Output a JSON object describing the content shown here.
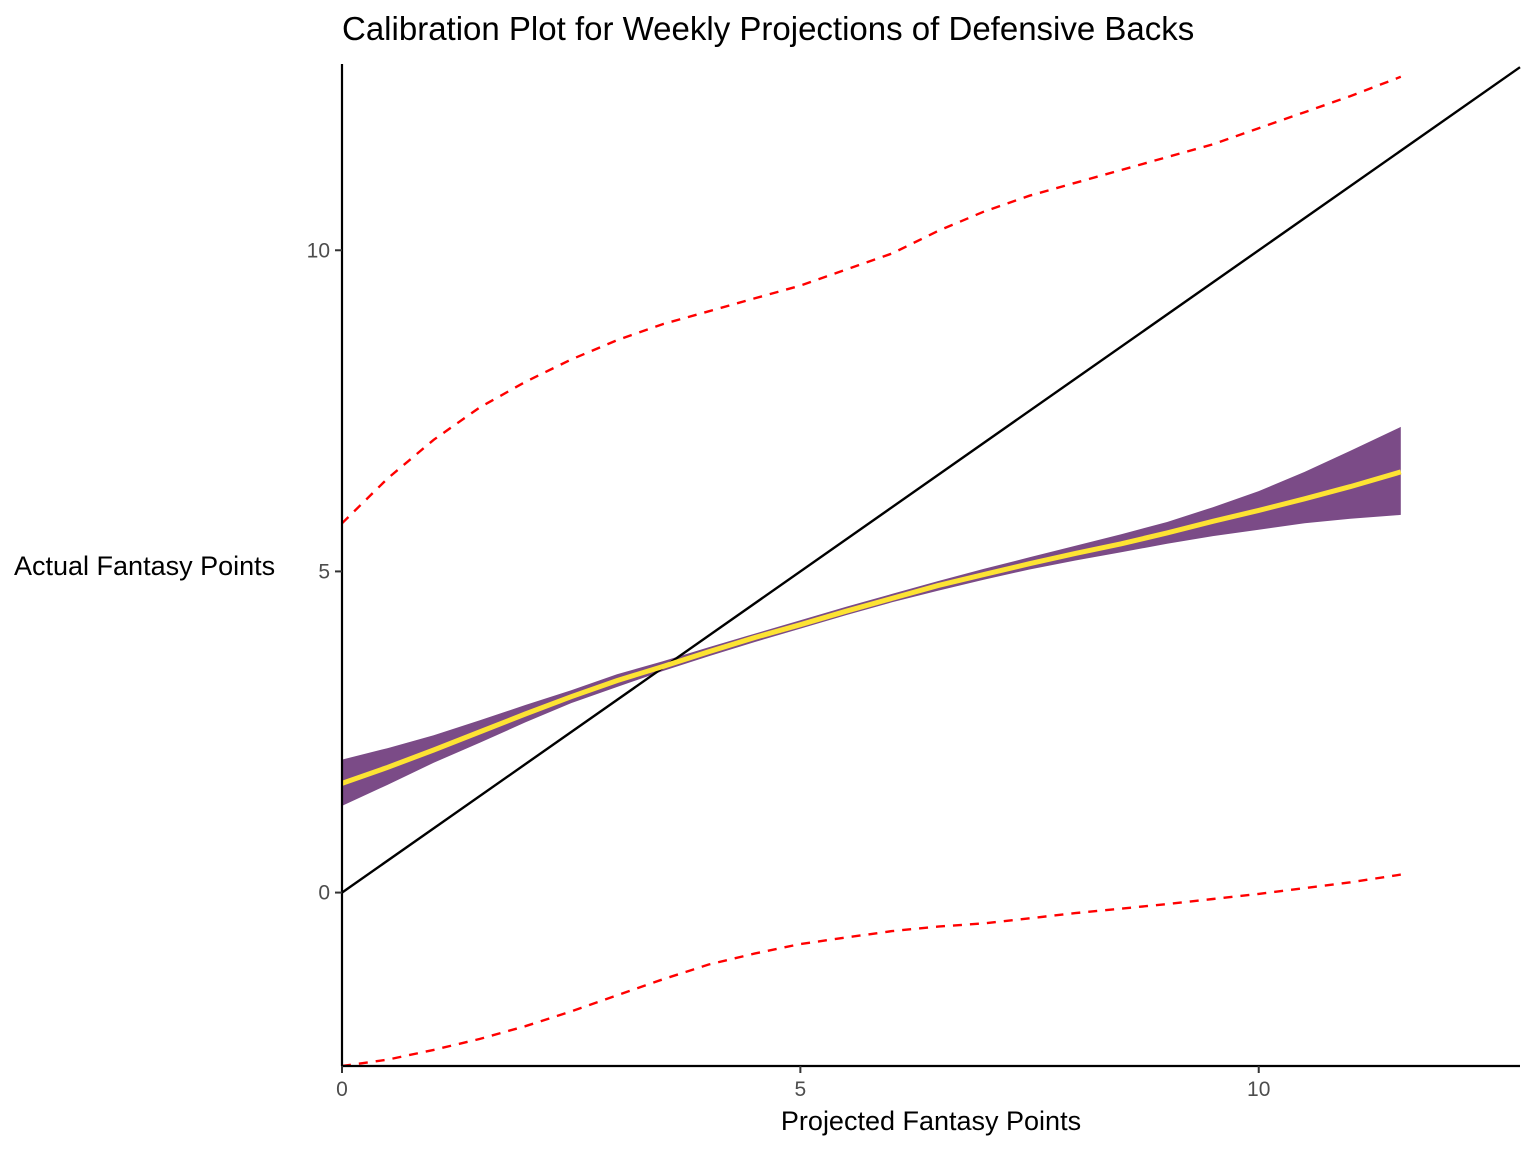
{
  "chart_data": {
    "type": "line",
    "title": "Calibration Plot for Weekly Projections of Defensive Backs",
    "xlabel": "Projected Fantasy Points",
    "ylabel": "Actual Fantasy Points",
    "xlim": [
      0,
      12.85
    ],
    "ylim": [
      -2.7,
      12.9
    ],
    "x_ticks": [
      0,
      5,
      10
    ],
    "y_ticks": [
      0,
      5,
      10
    ],
    "grid": false,
    "legend": "none",
    "colors": {
      "smooth_line": "#FDE333",
      "confidence_band": "#7B4B87",
      "prediction_interval": "#FF0000",
      "identity_line": "#000000",
      "axis": "#000000"
    },
    "series": [
      {
        "style": "identity",
        "x": [
          0,
          12.85
        ],
        "y": [
          0,
          12.85
        ]
      },
      {
        "style": "smooth",
        "x": [
          0,
          0.5,
          1,
          1.5,
          2,
          2.5,
          3,
          3.5,
          4,
          4.5,
          5,
          5.5,
          6,
          6.5,
          7,
          7.5,
          8,
          8.5,
          9,
          9.5,
          10,
          10.5,
          11,
          11.55
        ],
        "y": [
          1.7,
          1.95,
          2.22,
          2.5,
          2.78,
          3.05,
          3.3,
          3.52,
          3.75,
          3.97,
          4.17,
          4.38,
          4.58,
          4.78,
          4.95,
          5.12,
          5.28,
          5.43,
          5.6,
          5.78,
          5.95,
          6.13,
          6.32,
          6.55
        ],
        "band_lower": [
          1.35,
          1.68,
          2.02,
          2.33,
          2.65,
          2.95,
          3.2,
          3.45,
          3.68,
          3.9,
          4.11,
          4.32,
          4.52,
          4.7,
          4.87,
          5.03,
          5.17,
          5.3,
          5.43,
          5.55,
          5.65,
          5.75,
          5.82,
          5.88
        ],
        "band_upper": [
          2.07,
          2.25,
          2.45,
          2.68,
          2.92,
          3.15,
          3.4,
          3.6,
          3.82,
          4.03,
          4.24,
          4.45,
          4.65,
          4.85,
          5.04,
          5.22,
          5.4,
          5.58,
          5.77,
          6.0,
          6.25,
          6.55,
          6.88,
          7.25
        ]
      },
      {
        "style": "prediction-upper",
        "x": [
          0,
          0.5,
          1,
          1.5,
          2,
          2.5,
          3,
          3.5,
          4,
          4.5,
          5,
          5.5,
          6,
          6.5,
          7,
          7.5,
          8,
          8.5,
          9,
          9.5,
          10,
          10.5,
          11,
          11.55
        ],
        "y": [
          5.75,
          6.45,
          7.05,
          7.55,
          7.95,
          8.3,
          8.6,
          8.85,
          9.05,
          9.25,
          9.45,
          9.7,
          9.95,
          10.3,
          10.6,
          10.85,
          11.05,
          11.25,
          11.45,
          11.65,
          11.9,
          12.15,
          12.4,
          12.7
        ]
      },
      {
        "style": "prediction-lower",
        "x": [
          0,
          0.5,
          1,
          1.5,
          2,
          2.5,
          3,
          3.5,
          4,
          4.5,
          5,
          5.5,
          6,
          6.5,
          7,
          7.5,
          8,
          8.5,
          9,
          9.5,
          10,
          10.5,
          11,
          11.55
        ],
        "y": [
          -2.7,
          -2.6,
          -2.45,
          -2.28,
          -2.08,
          -1.85,
          -1.6,
          -1.35,
          -1.12,
          -0.95,
          -0.8,
          -0.7,
          -0.6,
          -0.53,
          -0.48,
          -0.4,
          -0.32,
          -0.25,
          -0.18,
          -0.1,
          -0.02,
          0.07,
          0.16,
          0.28
        ]
      }
    ]
  }
}
